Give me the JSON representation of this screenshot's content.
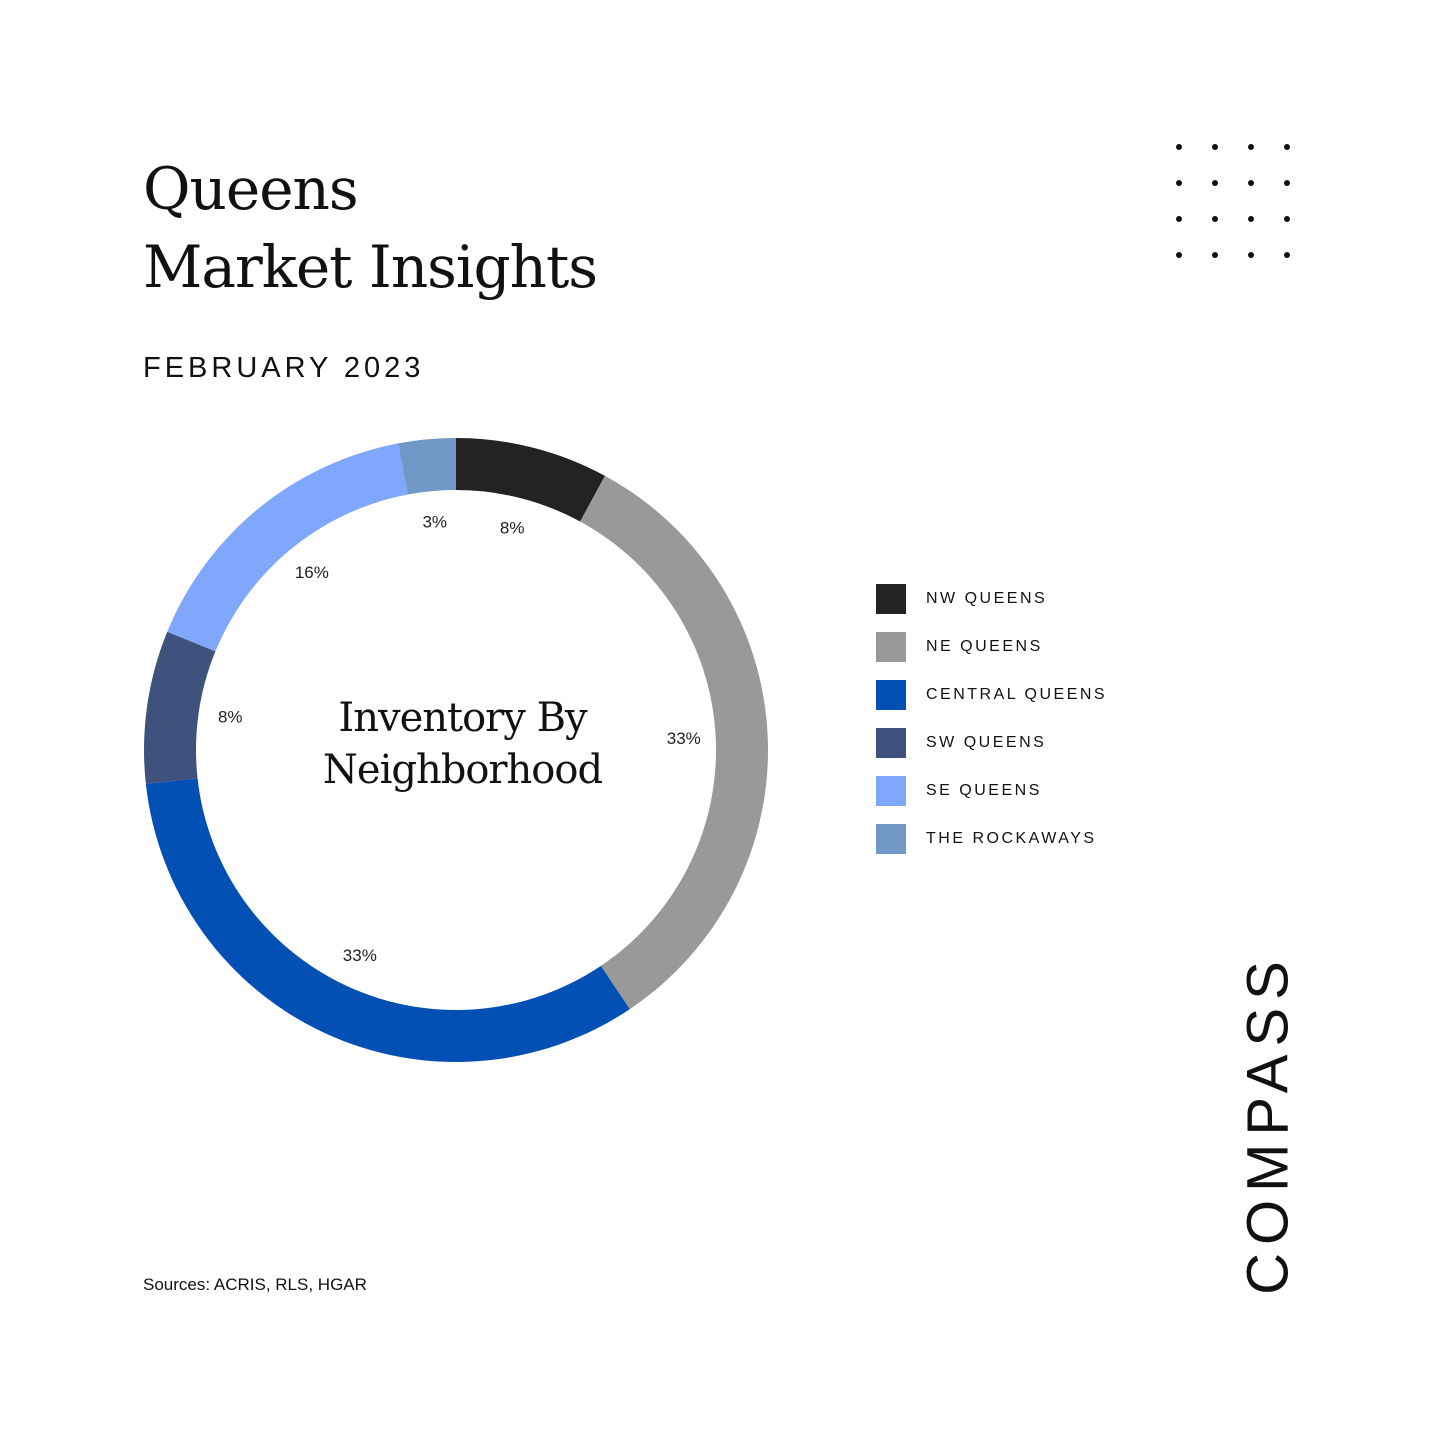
{
  "header": {
    "title_line1": "Queens",
    "title_line2": "Market Insights",
    "date": "FEBRUARY 2023"
  },
  "chart_data": {
    "type": "pie",
    "style": "donut",
    "center_label_line1": "Inventory By",
    "center_label_line2": "Neighborhood",
    "categories": [
      "NW QUEENS",
      "NE QUEENS",
      "CENTRAL QUEENS",
      "SW QUEENS",
      "SE QUEENS",
      "THE ROCKAWAYS"
    ],
    "values": [
      8,
      33,
      33,
      8,
      16,
      3
    ],
    "value_labels": [
      "8%",
      "33%",
      "33%",
      "8%",
      "16%",
      "3%"
    ],
    "colors": [
      "#232323",
      "#999999",
      "#0250b4",
      "#3f527e",
      "#7fa8fd",
      "#7097c6"
    ],
    "legend_position": "right"
  },
  "footer": {
    "sources": "Sources: ACRIS, RLS, HGAR",
    "logo": "COMPASS"
  }
}
